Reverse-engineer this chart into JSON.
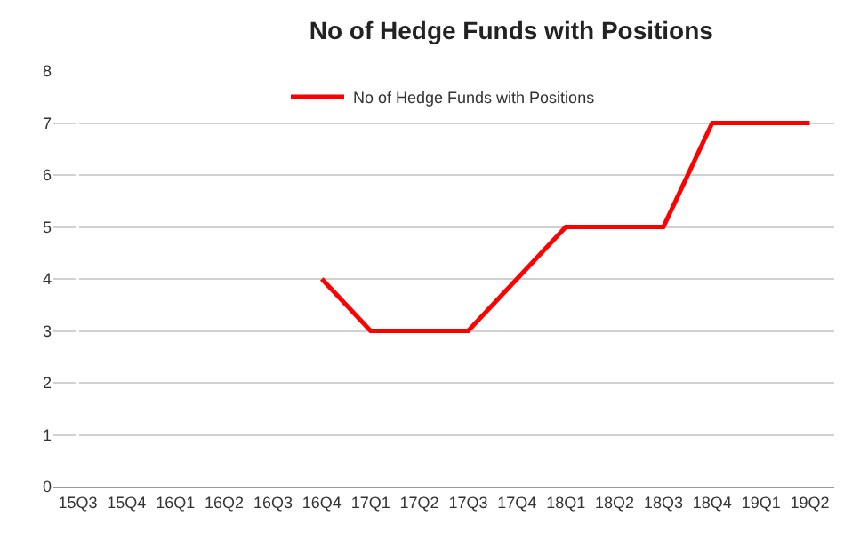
{
  "chart_data": {
    "type": "line",
    "title": "No of Hedge Funds with Positions",
    "categories": [
      "15Q3",
      "15Q4",
      "16Q1",
      "16Q2",
      "16Q3",
      "16Q4",
      "17Q1",
      "17Q2",
      "17Q3",
      "17Q4",
      "18Q1",
      "18Q2",
      "18Q3",
      "18Q4",
      "19Q1",
      "19Q2"
    ],
    "series": [
      {
        "name": "No of Hedge Funds with Positions",
        "color": "#ff0000",
        "values": [
          null,
          null,
          null,
          null,
          null,
          4,
          3,
          3,
          3,
          4,
          5,
          5,
          5,
          7,
          7,
          7
        ]
      }
    ],
    "ylim": [
      0,
      8
    ],
    "yticks": [
      0,
      1,
      2,
      3,
      4,
      5,
      6,
      7,
      8
    ],
    "grid": "y",
    "legend": "top",
    "marker": "none",
    "line_style": "solid"
  }
}
